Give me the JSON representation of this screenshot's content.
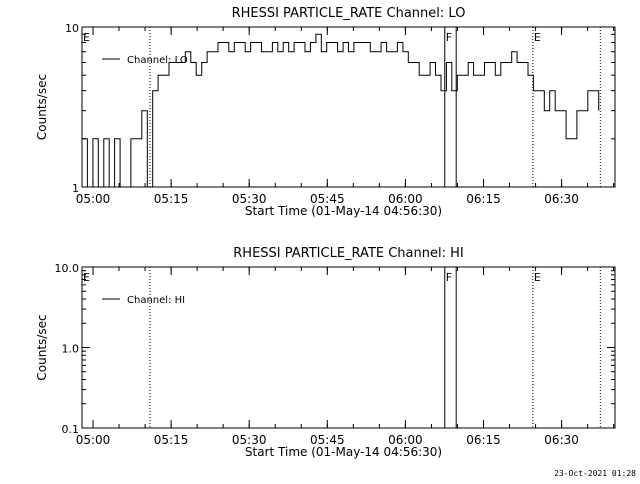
{
  "footer_timestamp": "23-Oct-2021 01:28",
  "chart_data": [
    {
      "type": "line",
      "title": "RHESSI PARTICLE_RATE Channel: LO",
      "xlabel": "Start Time (01-May-14 04:56:30)",
      "ylabel": "Counts/sec",
      "yscale": "log",
      "ylim": [
        1,
        10
      ],
      "ytick_labels": [
        "1",
        "10"
      ],
      "x_unit": "minutes since 04:56:30",
      "xlim": [
        0,
        98
      ],
      "xtick_labels": [
        "05:00",
        "05:15",
        "05:30",
        "05:45",
        "06:00",
        "06:15",
        "06:30"
      ],
      "grid": false,
      "legend": {
        "position": "top-left",
        "entries": [
          "Channel: LO"
        ]
      },
      "markers": [
        {
          "label": "E",
          "style": "dotted",
          "x": 0
        },
        {
          "label": "",
          "style": "dotted",
          "x": 12.5
        },
        {
          "label": "F",
          "style": "solid",
          "x": 66.7
        },
        {
          "label": "",
          "style": "solid",
          "x": 68.8
        },
        {
          "label": "E",
          "style": "dotted",
          "x": 82.9
        },
        {
          "label": "",
          "style": "dotted",
          "x": 95.3
        }
      ],
      "series": [
        {
          "name": "Channel: LO",
          "x": [
            0,
            1,
            2,
            3,
            4,
            5,
            6,
            7,
            8,
            9,
            10,
            11,
            12,
            13,
            14,
            15,
            16,
            17,
            18,
            19,
            20,
            21,
            22,
            23,
            24,
            25,
            26,
            27,
            28,
            29,
            30,
            31,
            32,
            33,
            34,
            35,
            36,
            37,
            38,
            39,
            40,
            41,
            42,
            43,
            44,
            45,
            46,
            47,
            48,
            49,
            50,
            51,
            52,
            53,
            54,
            55,
            56,
            57,
            58,
            59,
            60,
            61,
            62,
            63,
            64,
            65,
            66,
            67,
            68,
            69,
            70,
            71,
            72,
            73,
            74,
            75,
            76,
            77,
            78,
            79,
            80,
            81,
            82,
            83,
            84,
            85,
            86,
            87,
            88,
            89,
            90,
            91,
            92,
            93,
            94,
            95
          ],
          "y": [
            2,
            1,
            2,
            1,
            2,
            1,
            2,
            1,
            1,
            2,
            2,
            3,
            1,
            4,
            5,
            5,
            6,
            6,
            6,
            7,
            6,
            5,
            6,
            7,
            7,
            8,
            8,
            7,
            8,
            8,
            7,
            8,
            8,
            7,
            7,
            8,
            7,
            8,
            7,
            8,
            8,
            7,
            8,
            9,
            7,
            8,
            8,
            7,
            8,
            7,
            8,
            8,
            8,
            7,
            7,
            8,
            7,
            7,
            8,
            7,
            6,
            6,
            5,
            5,
            6,
            5,
            4,
            6,
            4,
            5,
            5,
            6,
            5,
            5,
            6,
            6,
            5,
            6,
            6,
            7,
            6,
            6,
            5,
            4,
            4,
            3,
            4,
            3,
            3,
            2,
            2,
            3,
            3,
            4,
            4,
            3
          ]
        }
      ]
    },
    {
      "type": "line",
      "title": "RHESSI PARTICLE_RATE Channel: HI",
      "xlabel": "Start Time (01-May-14 04:56:30)",
      "ylabel": "Counts/sec",
      "yscale": "log",
      "ylim": [
        0.1,
        10.0
      ],
      "ytick_labels": [
        "0.1",
        "1.0",
        "10.0"
      ],
      "x_unit": "minutes since 04:56:30",
      "xlim": [
        0,
        98
      ],
      "xtick_labels": [
        "05:00",
        "05:15",
        "05:30",
        "05:45",
        "06:00",
        "06:15",
        "06:30"
      ],
      "grid": false,
      "legend": {
        "position": "top-left",
        "entries": [
          "Channel: HI"
        ]
      },
      "markers": [
        {
          "label": "E",
          "style": "dotted",
          "x": 0
        },
        {
          "label": "",
          "style": "dotted",
          "x": 12.5
        },
        {
          "label": "F",
          "style": "solid",
          "x": 66.7
        },
        {
          "label": "",
          "style": "solid",
          "x": 68.8
        },
        {
          "label": "E",
          "style": "dotted",
          "x": 82.9
        },
        {
          "label": "",
          "style": "dotted",
          "x": 95.3
        }
      ],
      "series": [
        {
          "name": "Channel: HI",
          "x": [],
          "y": []
        }
      ]
    }
  ]
}
